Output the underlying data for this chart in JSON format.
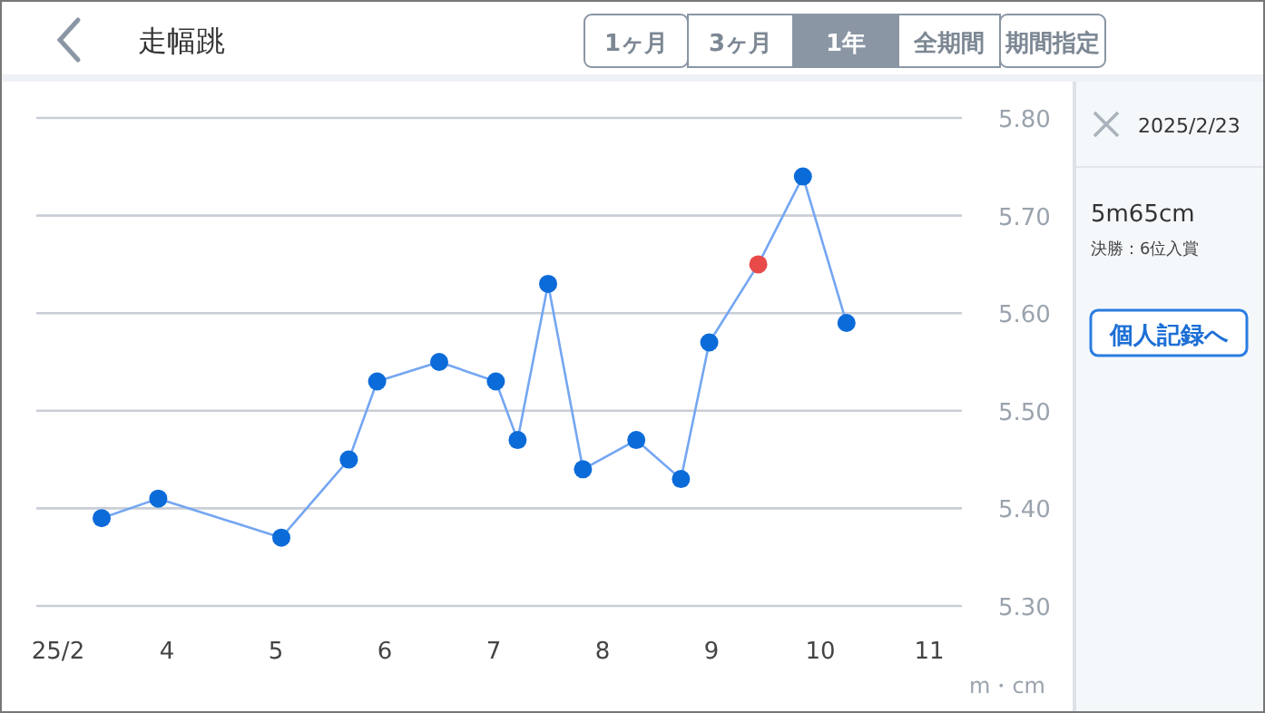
{
  "chart_data": {
    "type": "line",
    "title": "走幅跳",
    "ylabel": "m・cm",
    "x": [
      3.4,
      3.92,
      5.05,
      5.67,
      5.93,
      6.5,
      7.02,
      7.22,
      7.5,
      7.82,
      8.31,
      8.72,
      8.98,
      9.43,
      9.84,
      10.24
    ],
    "series": [
      {
        "color": "#74a6f2",
        "colors": [
          "#0b6bd9",
          "#0b6bd9",
          "#0b6bd9",
          "#0b6bd9",
          "#0b6bd9",
          "#0b6bd9",
          "#0b6bd9",
          "#0b6bd9",
          "#0b6bd9",
          "#0b6bd9",
          "#0b6bd9",
          "#0b6bd9",
          "#0b6bd9",
          "#e84a4a",
          "#0b6bd9",
          "#0b6bd9"
        ],
        "values": [
          5.39,
          5.41,
          5.37,
          5.45,
          5.53,
          5.55,
          5.53,
          5.47,
          5.63,
          5.44,
          5.47,
          5.43,
          5.57,
          5.65,
          5.74,
          5.59
        ]
      }
    ],
    "xlim": [
      2.8,
      11.3
    ],
    "xticks": [
      {
        "value": 3,
        "label": "25/2"
      },
      4,
      5,
      6,
      7,
      8,
      9,
      10,
      11
    ],
    "ylim": [
      5.3,
      5.8
    ],
    "yticks": [
      {
        "value": 5.3,
        "label": "5.30"
      },
      {
        "value": 5.4,
        "label": "5.40"
      },
      {
        "value": 5.5,
        "label": "5.50"
      },
      {
        "value": 5.6,
        "label": "5.60"
      },
      {
        "value": 5.7,
        "label": "5.70"
      },
      {
        "value": 5.8,
        "label": "5.80"
      }
    ],
    "grid": "y",
    "marker": "circle",
    "line_style": "solid",
    "annotations": [
      "1ヶ月",
      "3ヶ月",
      "1年",
      "全期間",
      "期間指定",
      "2025/2/23",
      "5m65cm",
      "決勝：6位入賞",
      "個人記録へ"
    ]
  }
}
